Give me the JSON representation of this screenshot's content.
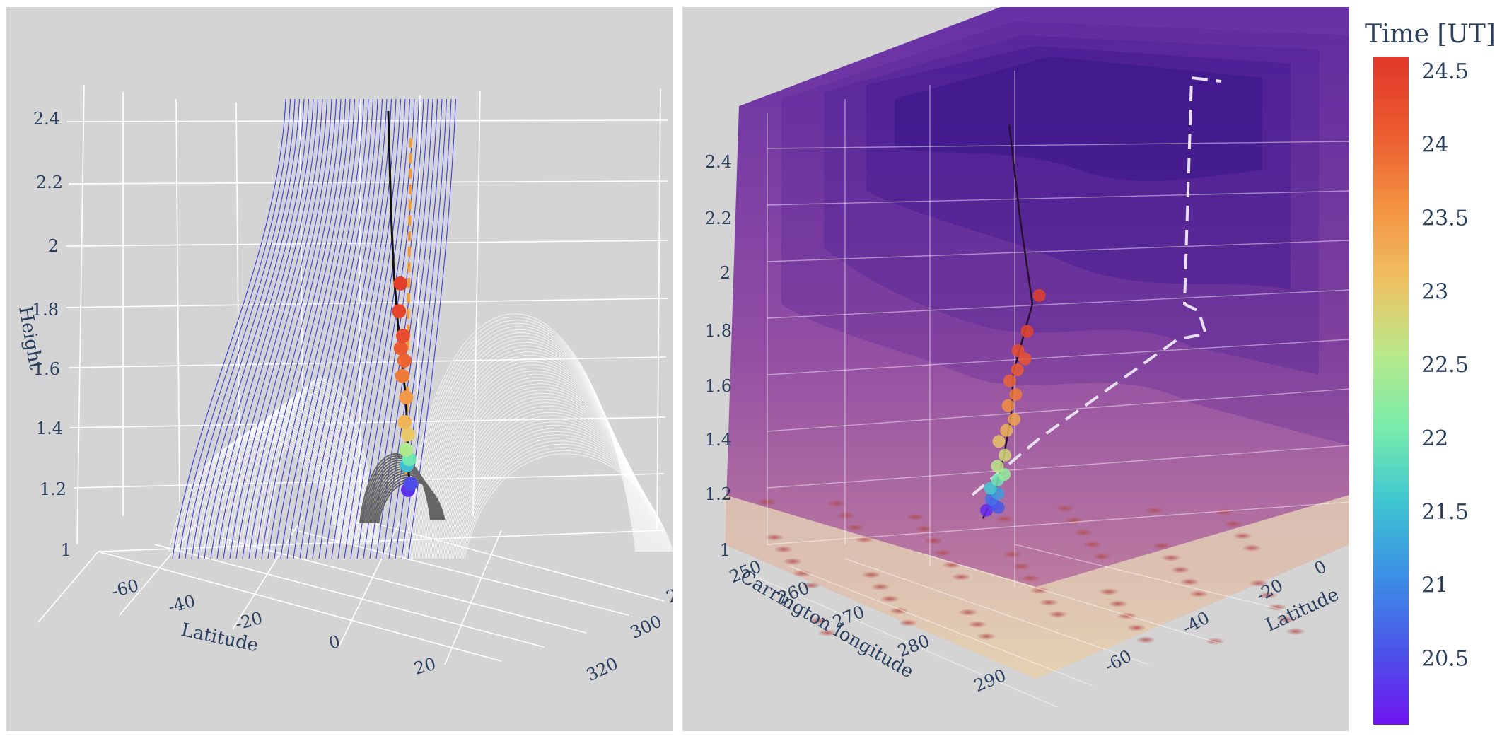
{
  "chart_data": [
    {
      "type": "scatter3d",
      "panel": "left",
      "z_axis": {
        "title": "Height",
        "range": [
          1,
          2.4
        ],
        "ticks": [
          "1",
          "1.2",
          "1.4",
          "1.6",
          "1.8",
          "2",
          "2.2",
          "2.4"
        ]
      },
      "lat_axis": {
        "title": "Latitude",
        "ticks": [
          "-60",
          "-40",
          "-20",
          "0",
          "20"
        ]
      },
      "lon_axis": {
        "title": "",
        "ticks": [
          "2",
          "300",
          "320"
        ]
      },
      "series": [
        {
          "points": [
            {
              "t": 20.3,
              "z": 1.2
            },
            {
              "t": 20.5,
              "z": 1.22
            },
            {
              "t": 21.5,
              "z": 1.28
            },
            {
              "t": 22.0,
              "z": 1.3
            },
            {
              "t": 22.5,
              "z": 1.33
            },
            {
              "t": 23.0,
              "z": 1.38
            },
            {
              "t": 23.2,
              "z": 1.42
            },
            {
              "t": 23.5,
              "z": 1.5
            },
            {
              "t": 23.8,
              "z": 1.57
            },
            {
              "t": 24.0,
              "z": 1.62
            },
            {
              "t": 24.1,
              "z": 1.66
            },
            {
              "t": 24.3,
              "z": 1.7
            },
            {
              "t": 24.4,
              "z": 1.78
            },
            {
              "t": 24.5,
              "z": 1.87
            }
          ]
        }
      ]
    },
    {
      "type": "scatter3d",
      "panel": "right",
      "z_axis": {
        "title": "",
        "range": [
          1,
          2.4
        ],
        "ticks": [
          "1",
          "1.2",
          "1.4",
          "1.6",
          "1.8",
          "2",
          "2.2",
          "2.4"
        ]
      },
      "lon_axis": {
        "title": "Carrington longitude",
        "ticks": [
          "250",
          "260",
          "270",
          "280",
          "290"
        ]
      },
      "lat_axis": {
        "title": "Latitude",
        "ticks": [
          "0",
          "-20",
          "-40",
          "-60"
        ]
      },
      "series": [
        {
          "points": [
            {
              "t": 20.2,
              "z": 1.15
            },
            {
              "t": 20.4,
              "z": 1.17
            },
            {
              "t": 20.6,
              "z": 1.16
            },
            {
              "t": 20.8,
              "z": 1.19
            },
            {
              "t": 21.2,
              "z": 1.21
            },
            {
              "t": 21.6,
              "z": 1.23
            },
            {
              "t": 22.0,
              "z": 1.26
            },
            {
              "t": 22.3,
              "z": 1.28
            },
            {
              "t": 22.6,
              "z": 1.31
            },
            {
              "t": 22.8,
              "z": 1.35
            },
            {
              "t": 23.0,
              "z": 1.4
            },
            {
              "t": 23.2,
              "z": 1.44
            },
            {
              "t": 23.4,
              "z": 1.48
            },
            {
              "t": 23.6,
              "z": 1.53
            },
            {
              "t": 23.8,
              "z": 1.57
            },
            {
              "t": 24.0,
              "z": 1.62
            },
            {
              "t": 24.1,
              "z": 1.66
            },
            {
              "t": 24.2,
              "z": 1.7
            },
            {
              "t": 24.3,
              "z": 1.73
            },
            {
              "t": 24.4,
              "z": 1.8
            },
            {
              "t": 24.5,
              "z": 1.93
            }
          ]
        }
      ]
    }
  ],
  "colorbar": {
    "title": "Time [UT]",
    "range": [
      20.05,
      24.6
    ],
    "ticks": [
      "24.5",
      "24",
      "23.5",
      "23",
      "22.5",
      "22",
      "21.5",
      "21",
      "20.5"
    ],
    "colors": [
      "#7014f0",
      "#4a55e8",
      "#3c8fe6",
      "#3ec6d2",
      "#78ecaa",
      "#b9e98a",
      "#f0c060",
      "#f29040",
      "#ec5a30",
      "#e0382a"
    ]
  },
  "colors": {
    "panel_bg": "#d4d4d4",
    "open_field": "#2222dd",
    "closed_field": "#ffffff",
    "trajectory": "#111111",
    "fit_line": "#f39a3a"
  }
}
